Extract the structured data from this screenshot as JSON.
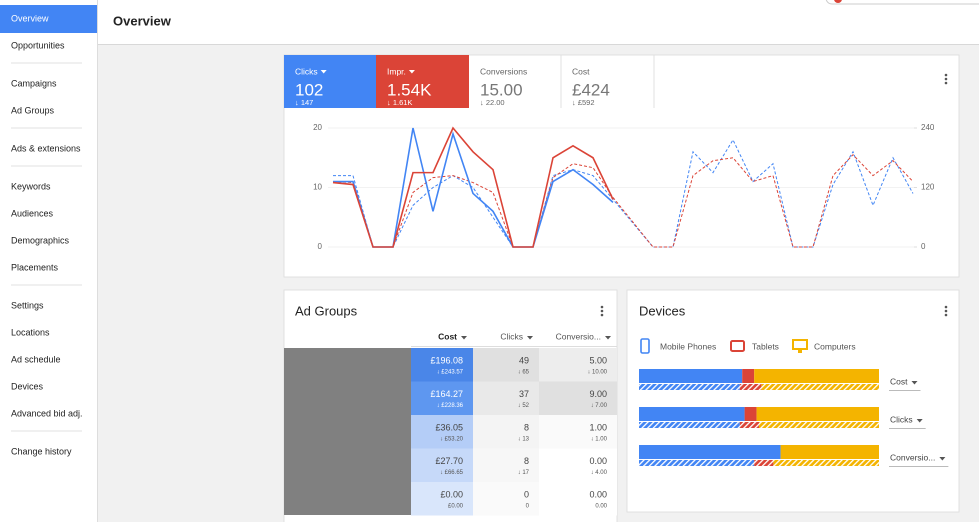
{
  "sidebar": {
    "groups": [
      [
        "Overview",
        "Opportunities"
      ],
      [
        "Campaigns",
        "Ad Groups"
      ],
      [
        "Ads & extensions"
      ],
      [
        "Keywords",
        "Audiences",
        "Demographics",
        "Placements"
      ],
      [
        "Settings",
        "Locations",
        "Ad schedule",
        "Devices",
        "Advanced bid adj."
      ],
      [
        "Change history"
      ]
    ]
  },
  "header": {
    "title": "Overview"
  },
  "scorecards": [
    {
      "label": "Clicks",
      "value": "102",
      "compare": "↓ 147",
      "color": "#4285f4",
      "dropdown": true
    },
    {
      "label": "Impr.",
      "value": "1.54K",
      "compare": "↓ 1.61K",
      "color": "#db4437",
      "dropdown": true
    },
    {
      "label": "Conversions",
      "value": "15.00",
      "compare": "↓ 22.00"
    },
    {
      "label": "Cost",
      "value": "£424",
      "compare": "↓ £592"
    }
  ],
  "performance_chart": {
    "type": "line",
    "ylim": [
      0,
      20
    ],
    "yticks": [
      0,
      10,
      20
    ],
    "y2lim": [
      0,
      240
    ],
    "y2ticks": [
      0,
      120,
      240
    ],
    "series": [
      {
        "color": "#4285f4",
        "dashed": true,
        "values": [
          12,
          12,
          0,
          0,
          7,
          10,
          12,
          10,
          5,
          0,
          0,
          12,
          13,
          12,
          8,
          4,
          0,
          0,
          16,
          12.5,
          18,
          11,
          14,
          0,
          0,
          10.5,
          16,
          7,
          15,
          9
        ]
      },
      {
        "color": "#db4437",
        "dashed": true,
        "axis": "y2",
        "values": [
          132,
          130,
          0,
          0,
          110,
          140,
          144,
          130,
          110,
          0,
          0,
          140,
          168,
          160,
          100,
          50,
          0,
          0,
          144,
          174,
          180,
          132,
          144,
          0,
          0,
          144,
          186,
          144,
          174,
          132
        ]
      },
      {
        "color": "#4285f4",
        "values": [
          11,
          11,
          0,
          0,
          20,
          6,
          19,
          9,
          6,
          0,
          0,
          11,
          13,
          10.5,
          7.5,
          null,
          null,
          null,
          null,
          null,
          null,
          null,
          null,
          null,
          null,
          null,
          null,
          null,
          null,
          null
        ]
      },
      {
        "color": "#db4437",
        "axis": "y2",
        "values": [
          130,
          126,
          0,
          0,
          150,
          150,
          240,
          192,
          156,
          0,
          0,
          180,
          204,
          180,
          96,
          null,
          null,
          null,
          null,
          null,
          null,
          null,
          null,
          null,
          null,
          null,
          null,
          null,
          null,
          null
        ]
      }
    ]
  },
  "ad_groups": {
    "title": "Ad Groups",
    "columns": [
      "Cost",
      "Clicks",
      "Conversio..."
    ],
    "rows": [
      [
        [
          "£196.08",
          "↓ £243.57"
        ],
        [
          "49",
          "↓ 65"
        ],
        [
          "5.00",
          "↓ 10.00"
        ]
      ],
      [
        [
          "£164.27",
          "↓ £228.36"
        ],
        [
          "37",
          "↓ 52"
        ],
        [
          "9.00",
          "↓ 7.00"
        ]
      ],
      [
        [
          "£36.05",
          "↓ £53.20"
        ],
        [
          "8",
          "↓ 13"
        ],
        [
          "1.00",
          "↓ 1.00"
        ]
      ],
      [
        [
          "£27.70",
          "↓ £66.65"
        ],
        [
          "8",
          "↓ 17"
        ],
        [
          "0.00",
          "↓ 4.00"
        ]
      ],
      [
        [
          "£0.00",
          "£0.00"
        ],
        [
          "0",
          "0"
        ],
        [
          "0.00",
          "0.00"
        ]
      ]
    ]
  },
  "devices": {
    "title": "Devices",
    "legend": [
      {
        "name": "Mobile Phones",
        "color": "#4285f4"
      },
      {
        "name": "Tablets",
        "color": "#db4437"
      },
      {
        "name": "Computers",
        "color": "#f4b400"
      }
    ],
    "rows": [
      {
        "metric": "Cost",
        "current": [
          43,
          5,
          52
        ],
        "previous": [
          42,
          9,
          49
        ]
      },
      {
        "metric": "Clicks",
        "current": [
          44,
          5,
          51
        ],
        "previous": [
          42,
          8,
          50
        ]
      },
      {
        "metric": "Conversio...",
        "current": [
          59,
          0,
          41
        ],
        "previous": [
          48,
          8,
          44
        ]
      }
    ]
  }
}
